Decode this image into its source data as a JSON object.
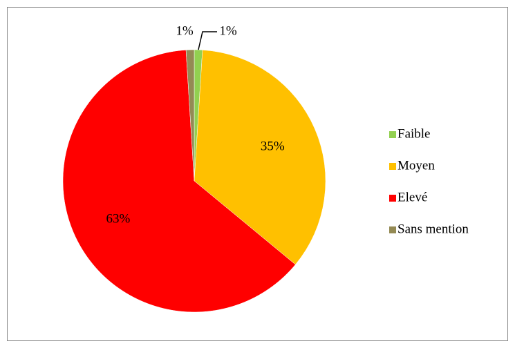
{
  "chart_data": {
    "type": "pie",
    "categories": [
      "Faible",
      "Moyen",
      "Elevé",
      "Sans mention"
    ],
    "values": [
      1,
      35,
      63,
      1
    ],
    "value_labels": [
      "1%",
      "35%",
      "63%",
      "1%"
    ],
    "colors": [
      "#92d050",
      "#ffc000",
      "#ff0000",
      "#948a54"
    ],
    "legend": "right"
  }
}
